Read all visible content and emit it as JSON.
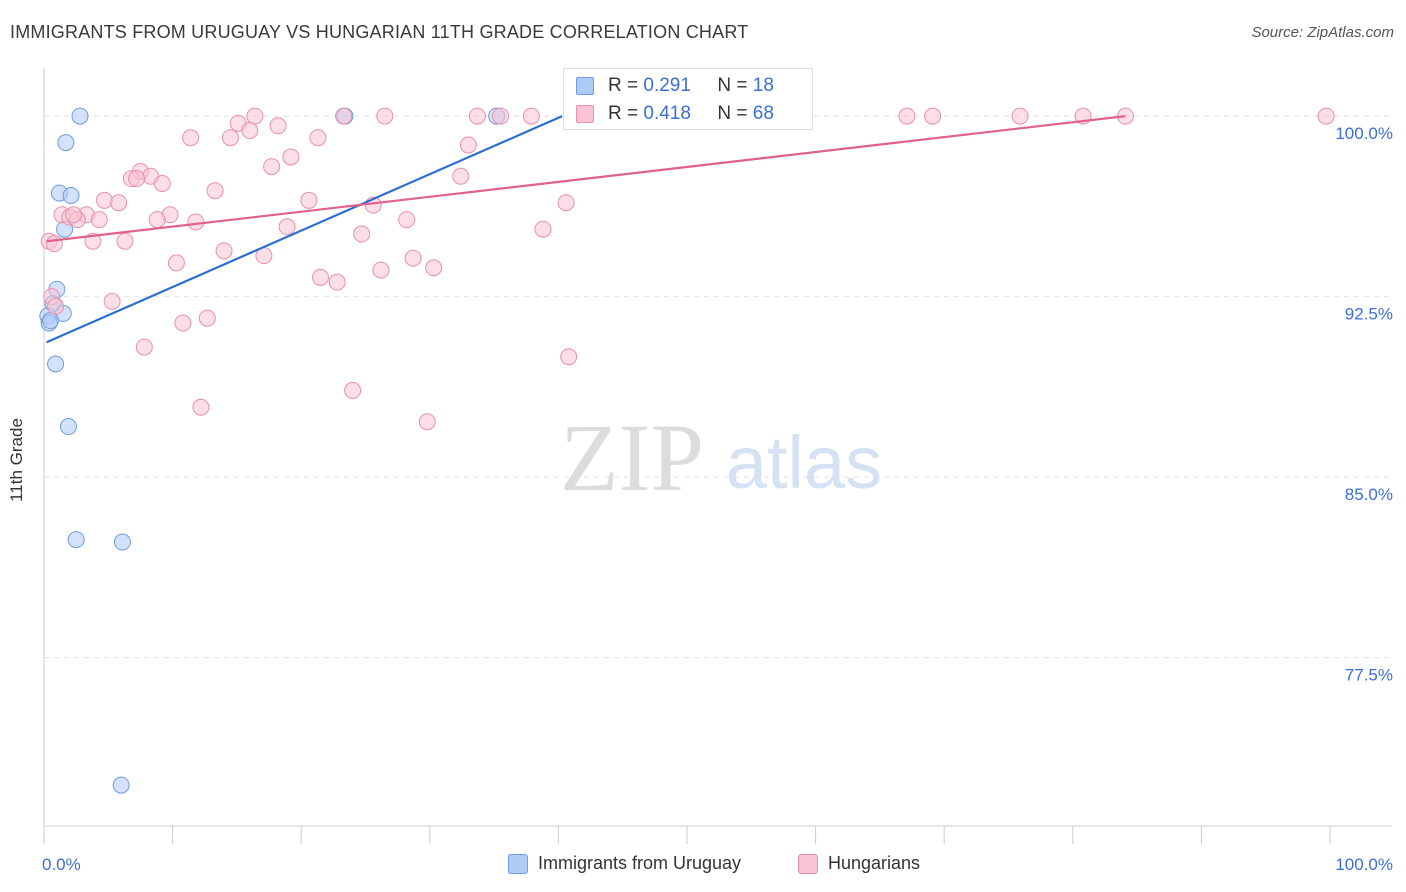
{
  "header": {
    "title": "IMMIGRANTS FROM URUGUAY VS HUNGARIAN 11TH GRADE CORRELATION CHART",
    "source": "Source: ZipAtlas.com"
  },
  "watermark": {
    "zip": "ZIP",
    "atlas": "atlas"
  },
  "stats": {
    "r_label": "R =",
    "n_label": "N =",
    "rows": [
      {
        "r": "0.291",
        "n": "18",
        "color": "#aecbf5",
        "border": "#6f9be0"
      },
      {
        "r": "0.418",
        "n": "68",
        "color": "#f8c3d3",
        "border": "#e890ad"
      }
    ]
  },
  "legend": {
    "items": [
      {
        "label": "Immigrants from Uruguay",
        "color": "#aecbf5",
        "border": "#6f9be0"
      },
      {
        "label": "Hungarians",
        "color": "#f8c3d3",
        "border": "#e890ad"
      }
    ]
  },
  "chart_data": {
    "type": "scatter",
    "title": "IMMIGRANTS FROM URUGUAY VS HUNGARIAN 11TH GRADE CORRELATION CHART",
    "xlabel": "",
    "ylabel": "11th Grade",
    "xlim": [
      0,
      100
    ],
    "ylim": [
      70.5,
      101.5
    ],
    "x_tick_labels": [
      "0.0%",
      "100.0%"
    ],
    "y_ticks": [
      77.5,
      85.0,
      92.5,
      100.0
    ],
    "y_tick_labels": [
      "77.5%",
      "85.0%",
      "92.5%",
      "100.0%"
    ],
    "grid": true,
    "series": [
      {
        "name": "Immigrants from Uruguay",
        "color": "#aecbf5",
        "stroke": "#6f9be0",
        "line_color": "#2b6fd0",
        "trend": {
          "x": [
            0.2,
            40.3
          ],
          "y": [
            90.6,
            100.0
          ]
        },
        "points": [
          {
            "x": 2.8,
            "y": 100.0
          },
          {
            "x": 23.4,
            "y": 100.0
          },
          {
            "x": 35.2,
            "y": 100.0
          },
          {
            "x": 1.7,
            "y": 98.9
          },
          {
            "x": 1.2,
            "y": 96.8
          },
          {
            "x": 2.1,
            "y": 96.7
          },
          {
            "x": 1.6,
            "y": 95.3
          },
          {
            "x": 1.0,
            "y": 92.8
          },
          {
            "x": 0.7,
            "y": 92.2
          },
          {
            "x": 1.5,
            "y": 91.8
          },
          {
            "x": 0.3,
            "y": 91.7
          },
          {
            "x": 0.4,
            "y": 91.4
          },
          {
            "x": 0.9,
            "y": 89.7
          },
          {
            "x": 1.9,
            "y": 87.1
          },
          {
            "x": 2.5,
            "y": 82.4
          },
          {
            "x": 6.1,
            "y": 82.3
          },
          {
            "x": 6.0,
            "y": 72.2
          },
          {
            "x": 0.5,
            "y": 91.5
          }
        ]
      },
      {
        "name": "Hungarians",
        "color": "#f8c3d3",
        "stroke": "#e890ad",
        "line_color": "#e0628c",
        "trend": {
          "x": [
            0.2,
            84.1
          ],
          "y": [
            94.8,
            100.0
          ]
        },
        "points": [
          {
            "x": 16.4,
            "y": 100.0
          },
          {
            "x": 23.3,
            "y": 100.0
          },
          {
            "x": 26.5,
            "y": 100.0
          },
          {
            "x": 33.7,
            "y": 100.0
          },
          {
            "x": 35.5,
            "y": 100.0
          },
          {
            "x": 37.9,
            "y": 100.0
          },
          {
            "x": 67.1,
            "y": 100.0
          },
          {
            "x": 69.1,
            "y": 100.0
          },
          {
            "x": 75.9,
            "y": 100.0
          },
          {
            "x": 80.8,
            "y": 100.0
          },
          {
            "x": 84.1,
            "y": 100.0
          },
          {
            "x": 99.7,
            "y": 100.0
          },
          {
            "x": 15.1,
            "y": 99.7
          },
          {
            "x": 18.2,
            "y": 99.6
          },
          {
            "x": 16.0,
            "y": 99.4
          },
          {
            "x": 11.4,
            "y": 99.1
          },
          {
            "x": 14.5,
            "y": 99.1
          },
          {
            "x": 21.3,
            "y": 99.1
          },
          {
            "x": 33.0,
            "y": 98.8
          },
          {
            "x": 19.2,
            "y": 98.3
          },
          {
            "x": 17.7,
            "y": 97.9
          },
          {
            "x": 7.5,
            "y": 97.7
          },
          {
            "x": 8.3,
            "y": 97.5
          },
          {
            "x": 6.8,
            "y": 97.4
          },
          {
            "x": 9.2,
            "y": 97.2
          },
          {
            "x": 32.4,
            "y": 97.5
          },
          {
            "x": 13.3,
            "y": 96.9
          },
          {
            "x": 20.6,
            "y": 96.5
          },
          {
            "x": 4.7,
            "y": 96.5
          },
          {
            "x": 5.8,
            "y": 96.4
          },
          {
            "x": 25.6,
            "y": 96.3
          },
          {
            "x": 40.6,
            "y": 96.4
          },
          {
            "x": 1.4,
            "y": 95.9
          },
          {
            "x": 2.0,
            "y": 95.8
          },
          {
            "x": 3.3,
            "y": 95.9
          },
          {
            "x": 2.6,
            "y": 95.7
          },
          {
            "x": 4.3,
            "y": 95.7
          },
          {
            "x": 9.8,
            "y": 95.9
          },
          {
            "x": 8.8,
            "y": 95.7
          },
          {
            "x": 11.8,
            "y": 95.6
          },
          {
            "x": 28.2,
            "y": 95.7
          },
          {
            "x": 18.9,
            "y": 95.4
          },
          {
            "x": 24.7,
            "y": 95.1
          },
          {
            "x": 38.8,
            "y": 95.3
          },
          {
            "x": 0.4,
            "y": 94.8
          },
          {
            "x": 0.8,
            "y": 94.7
          },
          {
            "x": 3.8,
            "y": 94.8
          },
          {
            "x": 6.3,
            "y": 94.8
          },
          {
            "x": 14.0,
            "y": 94.4
          },
          {
            "x": 17.1,
            "y": 94.2
          },
          {
            "x": 28.7,
            "y": 94.1
          },
          {
            "x": 10.3,
            "y": 93.9
          },
          {
            "x": 26.2,
            "y": 93.6
          },
          {
            "x": 30.3,
            "y": 93.7
          },
          {
            "x": 21.5,
            "y": 93.3
          },
          {
            "x": 22.8,
            "y": 93.1
          },
          {
            "x": 0.6,
            "y": 92.5
          },
          {
            "x": 0.9,
            "y": 92.1
          },
          {
            "x": 5.3,
            "y": 92.3
          },
          {
            "x": 12.7,
            "y": 91.6
          },
          {
            "x": 10.8,
            "y": 91.4
          },
          {
            "x": 7.8,
            "y": 90.4
          },
          {
            "x": 40.8,
            "y": 90.0
          },
          {
            "x": 24.0,
            "y": 88.6
          },
          {
            "x": 12.2,
            "y": 87.9
          },
          {
            "x": 29.8,
            "y": 87.3
          },
          {
            "x": 7.2,
            "y": 97.4
          },
          {
            "x": 2.3,
            "y": 95.9
          }
        ]
      }
    ]
  }
}
